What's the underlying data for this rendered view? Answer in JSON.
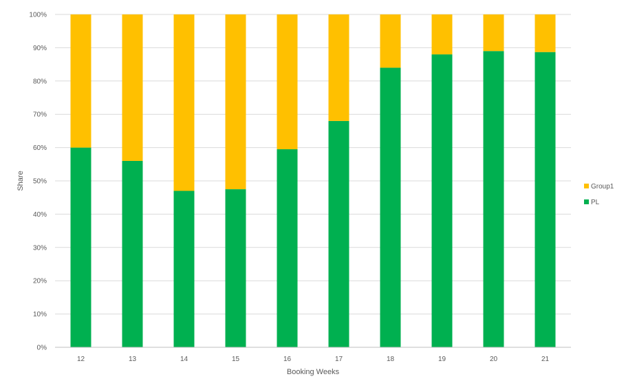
{
  "chart_data": {
    "type": "bar",
    "stacked": true,
    "categories": [
      "12",
      "13",
      "14",
      "15",
      "16",
      "17",
      "18",
      "19",
      "20",
      "21"
    ],
    "series": [
      {
        "name": "PL",
        "color": "#00b050",
        "values": [
          60,
          56,
          47,
          47.5,
          59.5,
          68,
          84,
          88,
          89,
          88.7
        ]
      },
      {
        "name": "Group1",
        "color": "#ffc000",
        "values": [
          40,
          44,
          53,
          52.5,
          40.5,
          32,
          16,
          12,
          11,
          11.3
        ]
      }
    ],
    "title": "",
    "xlabel": "Booking Weeks",
    "ylabel": "Share",
    "ylim": [
      0,
      100
    ],
    "yticks": [
      "0%",
      "10%",
      "20%",
      "30%",
      "40%",
      "50%",
      "60%",
      "70%",
      "80%",
      "90%",
      "100%"
    ],
    "grid": true,
    "legend_position": "right",
    "legend": [
      "Group1",
      "PL"
    ]
  }
}
